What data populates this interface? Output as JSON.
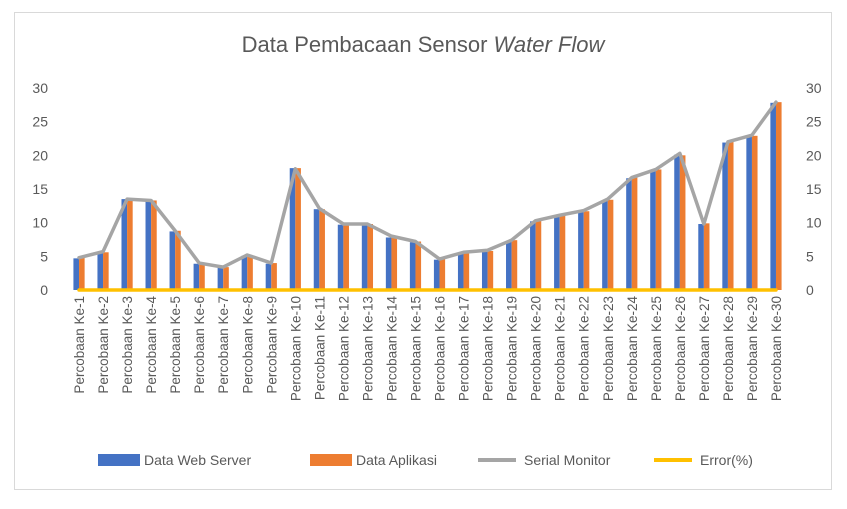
{
  "chart_data": {
    "type": "bar",
    "title": "Data Pembacaan Sensor",
    "title_italic": "Water Flow",
    "categories": [
      "Percobaan Ke-1",
      "Percobaan Ke-2",
      "Percobaan Ke-3",
      "Percobaan Ke-4",
      "Percobaan Ke-5",
      "Percobaan Ke-6",
      "Percobaan Ke-7",
      "Percobaan Ke-8",
      "Percobaan Ke-9",
      "Percobaan Ke-10",
      "Percobaan Ke-11",
      "Percobaan Ke-12",
      "Percobaan Ke-13",
      "Percobaan Ke-14",
      "Percobaan Ke-15",
      "Percobaan Ke-16",
      "Percobaan Ke-17",
      "Percobaan Ke-18",
      "Percobaan Ke-19",
      "Percobaan Ke-20",
      "Percobaan Ke-21",
      "Percobaan Ke-22",
      "Percobaan Ke-23",
      "Percobaan Ke-24",
      "Percobaan Ke-25",
      "Percobaan Ke-26",
      "Percobaan Ke-27",
      "Percobaan Ke-28",
      "Percobaan Ke-29",
      "Percobaan Ke-30"
    ],
    "series": [
      {
        "name": "Data Web Server",
        "kind": "bar",
        "color": "#4472c4",
        "values": [
          4.7,
          5.5,
          13.5,
          13.3,
          8.7,
          3.9,
          3.3,
          5.1,
          3.9,
          18.1,
          12.0,
          9.7,
          9.8,
          7.8,
          7.1,
          4.5,
          5.5,
          5.7,
          7.3,
          10.2,
          11.0,
          11.6,
          13.3,
          16.6,
          17.8,
          20.1,
          9.8,
          21.9,
          22.8,
          27.8
        ]
      },
      {
        "name": "Data Aplikasi",
        "kind": "bar",
        "color": "#ed7d31",
        "values": [
          4.8,
          5.6,
          13.5,
          13.3,
          8.8,
          4.0,
          3.4,
          5.2,
          4.0,
          18.1,
          12.0,
          9.8,
          9.8,
          7.9,
          7.2,
          4.6,
          5.6,
          5.8,
          7.4,
          10.3,
          11.1,
          11.7,
          13.4,
          16.7,
          17.9,
          20.0,
          9.9,
          22.0,
          22.9,
          27.9
        ]
      },
      {
        "name": "Serial Monitor",
        "kind": "line",
        "color": "#a5a5a5",
        "values": [
          4.8,
          5.7,
          13.5,
          13.3,
          8.8,
          4.0,
          3.4,
          5.2,
          4.0,
          18.0,
          12.1,
          9.8,
          9.8,
          8.0,
          7.2,
          4.6,
          5.6,
          5.9,
          7.4,
          10.3,
          11.1,
          11.8,
          13.5,
          16.7,
          17.9,
          20.3,
          9.8,
          22.0,
          23.0,
          27.9
        ]
      },
      {
        "name": "Error(%)",
        "kind": "line",
        "color": "#ffc000",
        "values": [
          0,
          0,
          0,
          0,
          0,
          0,
          0,
          0,
          0,
          0,
          0,
          0,
          0,
          0,
          0,
          0,
          0,
          0,
          0,
          0,
          0,
          0,
          0,
          0,
          0,
          0,
          0,
          0,
          0,
          0
        ]
      }
    ],
    "ylim": [
      0,
      30
    ],
    "yticks": [
      0,
      5,
      10,
      15,
      20,
      25,
      30
    ],
    "y2ticks": [
      0,
      5,
      10,
      15,
      20,
      25,
      30
    ],
    "grid": false,
    "legend_position": "bottom"
  }
}
